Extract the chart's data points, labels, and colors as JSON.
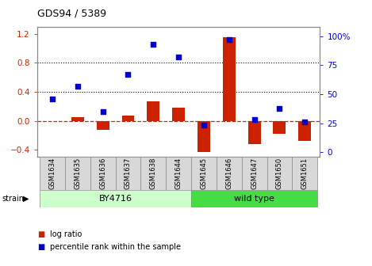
{
  "title": "GDS94 / 5389",
  "samples": [
    "GSM1634",
    "GSM1635",
    "GSM1636",
    "GSM1637",
    "GSM1638",
    "GSM1644",
    "GSM1645",
    "GSM1646",
    "GSM1647",
    "GSM1650",
    "GSM1651"
  ],
  "log_ratio": [
    0.0,
    0.05,
    -0.13,
    0.07,
    0.27,
    0.18,
    -0.43,
    1.15,
    -0.32,
    -0.18,
    -0.28
  ],
  "percentile_rank": [
    46,
    57,
    35,
    67,
    93,
    82,
    23,
    97,
    28,
    38,
    26
  ],
  "by4716_count": 6,
  "wild_type_count": 5,
  "by4716_color": "#ccffcc",
  "wild_type_color": "#44dd44",
  "bar_color": "#cc2200",
  "dot_color": "#0000cc",
  "ylim_left": [
    -0.5,
    1.3
  ],
  "ylim_right": [
    -4.17,
    108.33
  ],
  "yticks_left": [
    -0.4,
    0.0,
    0.4,
    0.8,
    1.2
  ],
  "yticks_right": [
    0,
    25,
    50,
    75,
    100
  ],
  "ytick_labels_right": [
    "0",
    "25",
    "50",
    "75",
    "100%"
  ],
  "hlines": [
    0.4,
    0.8
  ],
  "zero_line": 0.0,
  "bg_color": "#ffffff",
  "tick_label_color_left": "#cc2200",
  "tick_label_color_right": "#0000cc",
  "spine_color": "#888888"
}
